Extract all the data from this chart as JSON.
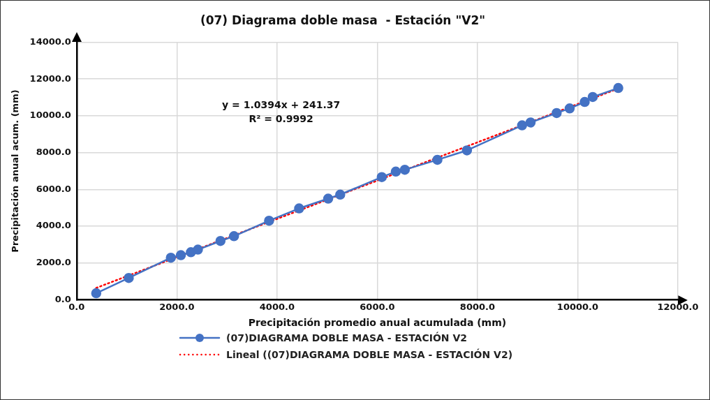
{
  "chart_data": {
    "type": "line",
    "title": "(07) Diagrama doble masa  - Estación \"V2\"",
    "xlabel": "Precipitación promedio anual acumulada (mm)",
    "ylabel": "Precipitación anual acum. (mm)",
    "xlim": [
      0,
      12000
    ],
    "ylim": [
      0,
      14000
    ],
    "xticks": [
      {
        "value": 0,
        "label": "0.0"
      },
      {
        "value": 2000,
        "label": "2000.0"
      },
      {
        "value": 4000,
        "label": "4000.0"
      },
      {
        "value": 6000,
        "label": "6000.0"
      },
      {
        "value": 8000,
        "label": "8000.0"
      },
      {
        "value": 10000,
        "label": "10000.0"
      },
      {
        "value": 12000,
        "label": "12000.0"
      }
    ],
    "yticks": [
      {
        "value": 0,
        "label": "0.0"
      },
      {
        "value": 2000,
        "label": "2000.0"
      },
      {
        "value": 4000,
        "label": "4000.0"
      },
      {
        "value": 6000,
        "label": "6000.0"
      },
      {
        "value": 8000,
        "label": "8000.0"
      },
      {
        "value": 10000,
        "label": "10000.0"
      },
      {
        "value": 12000,
        "label": "12000.0"
      },
      {
        "value": 14000,
        "label": "14000.0"
      }
    ],
    "grid": true,
    "legend": "bottom",
    "annotations": [
      "y = 1.0394x + 241.37",
      "R² = 0.9992"
    ],
    "series": [
      {
        "name": "(07)DIAGRAMA DOBLE MASA - ESTACIÓN V2",
        "color": "#4472c4",
        "marker": "circle",
        "line_style": "solid",
        "x": [
          390,
          1040,
          1880,
          2080,
          2280,
          2420,
          2870,
          3140,
          3840,
          4440,
          5020,
          5260,
          6090,
          6370,
          6550,
          7200,
          7790,
          8890,
          9060,
          9580,
          9840,
          10140,
          10300,
          10810
        ],
        "values": [
          360,
          1190,
          2290,
          2430,
          2590,
          2730,
          3200,
          3460,
          4300,
          4970,
          5500,
          5720,
          6670,
          6970,
          7070,
          7610,
          8120,
          9480,
          9640,
          10150,
          10400,
          10750,
          11020,
          11510
        ]
      },
      {
        "name": "Lineal ((07)DIAGRAMA DOBLE MASA - ESTACIÓN V2)",
        "type": "line",
        "color": "#ff0000",
        "marker": "none",
        "line_style": "dotted",
        "x": [
          390,
          10810
        ],
        "values": [
          650,
          11480
        ]
      }
    ]
  }
}
